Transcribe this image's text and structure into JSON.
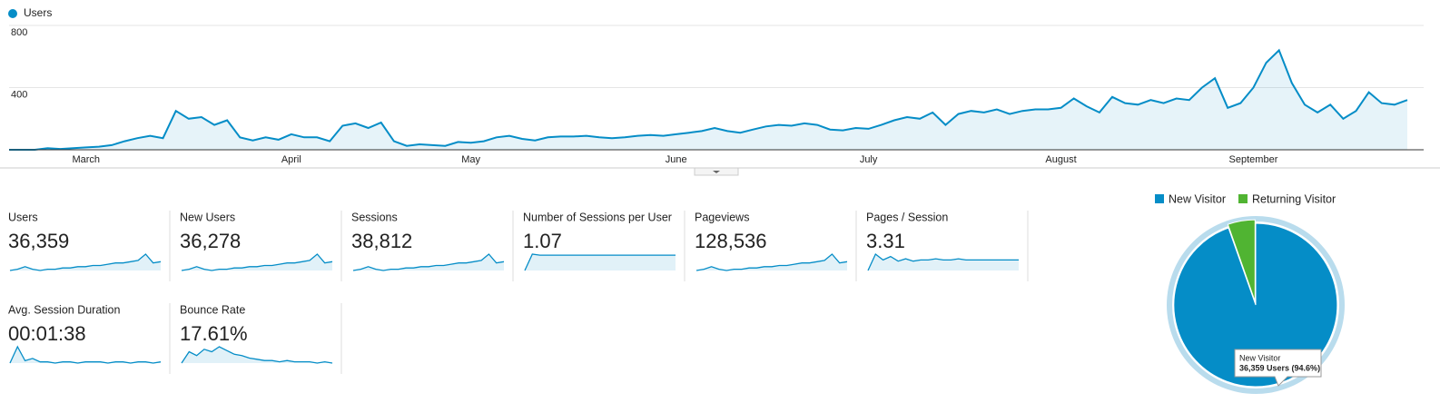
{
  "chart_data": [
    {
      "type": "line",
      "legend": "top-left",
      "series": [
        {
          "name": "Users",
          "color": "#058dc7",
          "values": [
            0,
            0,
            0,
            10,
            5,
            10,
            15,
            20,
            30,
            55,
            75,
            90,
            75,
            250,
            200,
            210,
            160,
            190,
            80,
            60,
            80,
            65,
            100,
            80,
            80,
            55,
            155,
            170,
            140,
            175,
            55,
            25,
            35,
            30,
            25,
            50,
            45,
            55,
            80,
            90,
            70,
            60,
            80,
            85,
            85,
            90,
            80,
            75,
            80,
            90,
            95,
            90,
            100,
            110,
            120,
            140,
            120,
            110,
            130,
            150,
            160,
            155,
            170,
            160,
            130,
            125,
            140,
            135,
            160,
            190,
            210,
            200,
            240,
            160,
            230,
            250,
            240,
            260,
            230,
            250,
            260,
            260,
            270,
            330,
            280,
            240,
            340,
            300,
            290,
            320,
            300,
            330,
            320,
            400,
            460,
            270,
            300,
            400,
            560,
            640,
            430,
            290,
            240,
            290,
            200,
            250,
            370,
            300,
            290,
            320
          ]
        }
      ],
      "categories": [
        null,
        null,
        null,
        null,
        null,
        null,
        "March",
        null,
        null,
        null,
        null,
        null,
        null,
        null,
        null,
        null,
        null,
        null,
        null,
        null,
        null,
        null,
        "April",
        null,
        null,
        null,
        null,
        null,
        null,
        null,
        null,
        null,
        null,
        null,
        null,
        null,
        "May",
        null,
        null,
        null,
        null,
        null,
        null,
        null,
        null,
        null,
        null,
        null,
        null,
        null,
        null,
        null,
        "June",
        null,
        null,
        null,
        null,
        null,
        null,
        null,
        null,
        null,
        null,
        null,
        null,
        null,
        null,
        "July",
        null,
        null,
        null,
        null,
        null,
        null,
        null,
        null,
        null,
        null,
        null,
        null,
        null,
        null,
        "August",
        null,
        null,
        null,
        null,
        null,
        null,
        null,
        null,
        null,
        null,
        null,
        null,
        null,
        null,
        "September",
        null,
        null,
        null,
        null,
        null,
        null,
        null,
        null,
        null,
        null,
        null,
        null
      ],
      "ylim": [
        0,
        800
      ],
      "yticks": [
        400,
        800
      ],
      "grid": true
    },
    {
      "type": "pie",
      "legend": "top",
      "categories": [
        "New Visitor",
        "Returning Visitor"
      ],
      "values": [
        94.6,
        5.4
      ],
      "colors": [
        "#058dc7",
        "#50b432"
      ],
      "tooltip": {
        "title": "New Visitor",
        "text": "36,359 Users (94.6%)"
      }
    }
  ],
  "metrics": [
    {
      "label": "Users",
      "value": "36,359",
      "trend": [
        3,
        4,
        6,
        4,
        3,
        4,
        4,
        5,
        5,
        6,
        6,
        7,
        7,
        8,
        9,
        9,
        10,
        11,
        16,
        9,
        10
      ]
    },
    {
      "label": "New Users",
      "value": "36,278",
      "trend": [
        3,
        4,
        6,
        4,
        3,
        4,
        4,
        5,
        5,
        6,
        6,
        7,
        7,
        8,
        9,
        9,
        10,
        11,
        16,
        9,
        10
      ]
    },
    {
      "label": "Sessions",
      "value": "38,812",
      "trend": [
        3,
        4,
        6,
        4,
        3,
        4,
        4,
        5,
        5,
        6,
        6,
        7,
        7,
        8,
        9,
        9,
        10,
        11,
        16,
        9,
        10
      ]
    },
    {
      "label": "Number of Sessions per User",
      "value": "1.07",
      "trend": [
        0,
        16,
        15,
        15,
        15,
        15,
        15,
        15,
        15,
        15,
        15,
        15,
        15,
        15,
        15,
        15,
        15,
        15,
        15,
        15,
        15
      ]
    },
    {
      "label": "Pageviews",
      "value": "128,536",
      "trend": [
        3,
        4,
        6,
        4,
        3,
        4,
        4,
        5,
        5,
        6,
        6,
        7,
        7,
        8,
        9,
        9,
        10,
        11,
        16,
        9,
        10
      ]
    },
    {
      "label": "Pages / Session",
      "value": "3.31",
      "trend": [
        0,
        14,
        9,
        12,
        8,
        10,
        8,
        9,
        9,
        10,
        9,
        9,
        10,
        9,
        9,
        9,
        9,
        9,
        9,
        9,
        9
      ]
    },
    {
      "label": "Avg. Session Duration",
      "value": "00:01:38",
      "trend": [
        2,
        16,
        4,
        6,
        3,
        3,
        2,
        3,
        3,
        2,
        3,
        3,
        3,
        2,
        3,
        3,
        2,
        3,
        3,
        2,
        3
      ]
    },
    {
      "label": "Bounce Rate",
      "value": "17.61%",
      "trend": [
        2,
        11,
        8,
        13,
        11,
        15,
        12,
        9,
        8,
        6,
        5,
        4,
        4,
        3,
        4,
        3,
        3,
        3,
        2,
        3,
        2
      ]
    }
  ]
}
